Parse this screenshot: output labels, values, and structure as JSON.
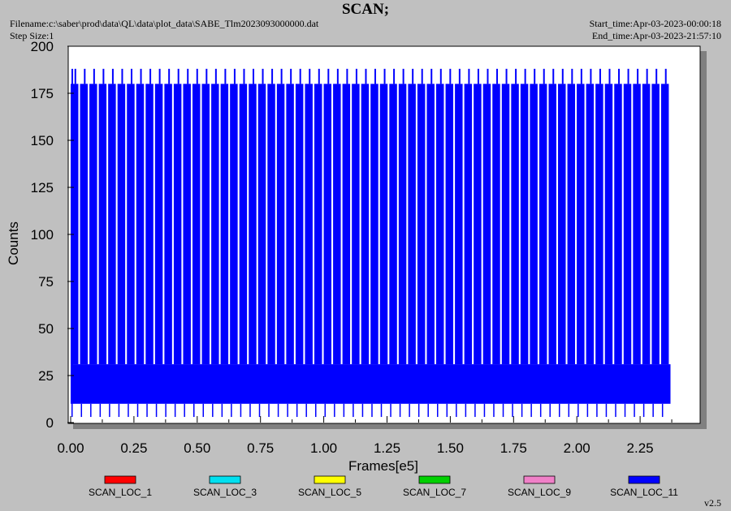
{
  "header": {
    "title": "SCAN;",
    "filename": "Filename:c:\\saber\\prod\\data\\QL\\data\\plot_data\\SABE_Tlm2023093000000.dat",
    "step_size": "Step Size:1",
    "start_time": "Start_time:Apr-03-2023-00:00:18",
    "end_time": "End_time:Apr-03-2023-21:57:10"
  },
  "footer": {
    "version": "v2.5"
  },
  "colors": {
    "background": "#c0c0c0",
    "plot_background": "#ffffff",
    "shadow": "#808080",
    "data_blue": "#0000ff"
  },
  "chart_data": {
    "type": "line",
    "title": "SCAN;",
    "xlabel": "Frames[e5]",
    "ylabel": "Counts",
    "xlim": [
      0,
      2.5
    ],
    "ylim": [
      0,
      200
    ],
    "x_ticks": [
      "0.00",
      "0.25",
      "0.50",
      "0.75",
      "1.00",
      "1.25",
      "1.50",
      "1.75",
      "2.00",
      "2.25"
    ],
    "y_ticks": [
      "0",
      "25",
      "50",
      "75",
      "100",
      "125",
      "150",
      "175",
      "200"
    ],
    "grid": false,
    "legend_position": "bottom",
    "series": [
      {
        "name": "SCAN_LOC_1",
        "color": "#ff0000",
        "values": []
      },
      {
        "name": "SCAN_LOC_3",
        "color": "#00e0f0",
        "values": []
      },
      {
        "name": "SCAN_LOC_5",
        "color": "#ffff00",
        "values": []
      },
      {
        "name": "SCAN_LOC_7",
        "color": "#00d000",
        "values": []
      },
      {
        "name": "SCAN_LOC_9",
        "color": "#f080c8",
        "values": []
      },
      {
        "name": "SCAN_LOC_11",
        "color": "#0000ff",
        "x_range": [
          0,
          2.37
        ],
        "dense_band": [
          10,
          31
        ],
        "plateau_value": 180,
        "spike_value": 188,
        "dip_value": 3,
        "cycles": 64
      }
    ]
  }
}
